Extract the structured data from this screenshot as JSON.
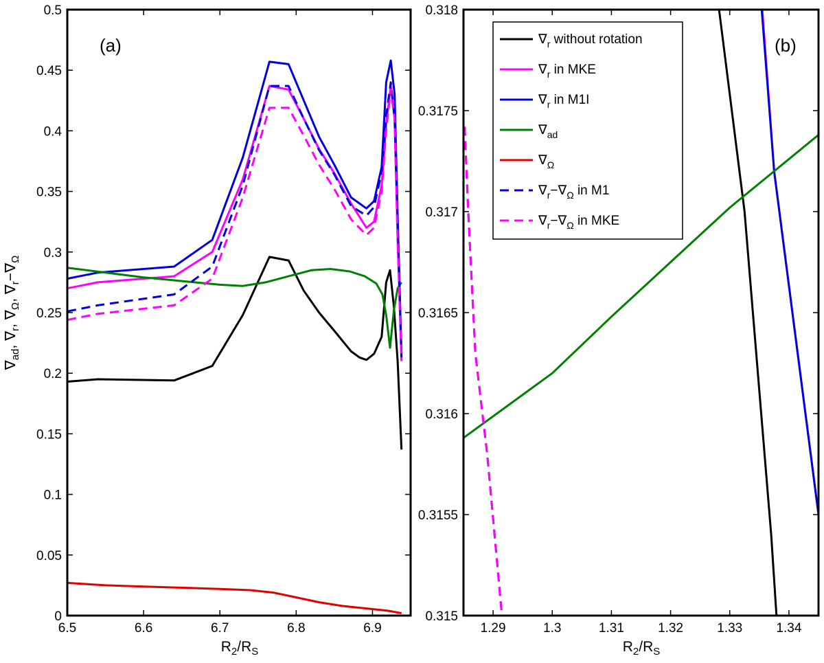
{
  "chart_data": [
    {
      "type": "line",
      "panel_label": "(a)",
      "xlabel": "R_2/R_S",
      "ylabel": "∇_ad, ∇_r, ∇_Ω, ∇_r−∇_Ω",
      "xlim": [
        6.5,
        6.95
      ],
      "ylim": [
        0,
        0.5
      ],
      "xticks": [
        "6.5",
        "6.6",
        "6.7",
        "6.8",
        "6.9"
      ],
      "yticks": [
        "0",
        "0.05",
        "0.1",
        "0.15",
        "0.2",
        "0.25",
        "0.3",
        "0.35",
        "0.4",
        "0.45",
        "0.5"
      ],
      "series": [
        {
          "name": "∇r without rotation",
          "color": "#000000",
          "dash": false,
          "x": [
            6.5,
            6.54,
            6.64,
            6.69,
            6.73,
            6.765,
            6.79,
            6.81,
            6.83,
            6.85,
            6.872,
            6.883,
            6.892,
            6.902,
            6.912,
            6.918,
            6.923,
            6.928,
            6.933,
            6.938
          ],
          "y": [
            0.193,
            0.195,
            0.194,
            0.206,
            0.248,
            0.296,
            0.293,
            0.268,
            0.25,
            0.235,
            0.218,
            0.213,
            0.211,
            0.216,
            0.23,
            0.275,
            0.285,
            0.255,
            0.21,
            0.137
          ]
        },
        {
          "name": "∇r in MKE",
          "color": "#ff00ff",
          "dash": false,
          "x": [
            6.5,
            6.54,
            6.64,
            6.69,
            6.73,
            6.765,
            6.79,
            6.81,
            6.83,
            6.85,
            6.872,
            6.892,
            6.902,
            6.912,
            6.918,
            6.924,
            6.929,
            6.933,
            6.938
          ],
          "y": [
            0.27,
            0.275,
            0.28,
            0.3,
            0.36,
            0.437,
            0.434,
            0.41,
            0.385,
            0.365,
            0.34,
            0.32,
            0.325,
            0.355,
            0.405,
            0.437,
            0.41,
            0.31,
            0.21
          ]
        },
        {
          "name": "∇r in M1I",
          "color": "#0000dd",
          "dash": false,
          "x": [
            6.5,
            6.54,
            6.64,
            6.69,
            6.73,
            6.765,
            6.79,
            6.81,
            6.83,
            6.85,
            6.872,
            6.892,
            6.902,
            6.912,
            6.918,
            6.924,
            6.929,
            6.933,
            6.938
          ],
          "y": [
            0.278,
            0.283,
            0.288,
            0.31,
            0.378,
            0.457,
            0.455,
            0.425,
            0.395,
            0.372,
            0.345,
            0.336,
            0.342,
            0.37,
            0.44,
            0.458,
            0.43,
            0.33,
            0.215
          ]
        },
        {
          "name": "∇ad",
          "color": "#008000",
          "dash": false,
          "x": [
            6.5,
            6.55,
            6.6,
            6.65,
            6.7,
            6.73,
            6.76,
            6.79,
            6.82,
            6.845,
            6.87,
            6.89,
            6.905,
            6.913,
            6.918,
            6.923,
            6.928,
            6.933,
            6.938
          ],
          "y": [
            0.287,
            0.283,
            0.279,
            0.276,
            0.273,
            0.272,
            0.275,
            0.28,
            0.285,
            0.286,
            0.284,
            0.28,
            0.274,
            0.265,
            0.248,
            0.221,
            0.252,
            0.27,
            0.275
          ]
        },
        {
          "name": "∇Ω",
          "color": "#e00000",
          "dash": false,
          "x": [
            6.5,
            6.55,
            6.6,
            6.65,
            6.7,
            6.74,
            6.77,
            6.8,
            6.83,
            6.86,
            6.89,
            6.92,
            6.938
          ],
          "y": [
            0.027,
            0.025,
            0.024,
            0.023,
            0.022,
            0.021,
            0.019,
            0.015,
            0.011,
            0.008,
            0.006,
            0.004,
            0.002
          ]
        },
        {
          "name": "∇r−∇Ω in M1",
          "color": "#0000dd",
          "dash": true,
          "x": [
            6.5,
            6.54,
            6.64,
            6.69,
            6.73,
            6.765,
            6.79,
            6.81,
            6.83,
            6.85,
            6.872,
            6.892,
            6.902,
            6.912,
            6.918,
            6.924,
            6.929,
            6.933,
            6.938
          ],
          "y": [
            0.251,
            0.256,
            0.265,
            0.288,
            0.355,
            0.437,
            0.437,
            0.41,
            0.384,
            0.364,
            0.338,
            0.33,
            0.337,
            0.366,
            0.412,
            0.44,
            0.41,
            0.325,
            0.213
          ]
        },
        {
          "name": "∇r−∇Ω in MKE",
          "color": "#ff00ff",
          "dash": true,
          "x": [
            6.5,
            6.54,
            6.64,
            6.69,
            6.73,
            6.765,
            6.79,
            6.81,
            6.83,
            6.85,
            6.872,
            6.892,
            6.902,
            6.912,
            6.918,
            6.924,
            6.929,
            6.933,
            6.938
          ],
          "y": [
            0.244,
            0.249,
            0.256,
            0.278,
            0.345,
            0.419,
            0.419,
            0.396,
            0.372,
            0.352,
            0.327,
            0.314,
            0.32,
            0.35,
            0.401,
            0.434,
            0.41,
            0.31,
            0.21
          ]
        }
      ]
    },
    {
      "type": "line",
      "panel_label": "(b)",
      "xlabel": "R_2/R_S",
      "ylabel": "",
      "xlim": [
        1.285,
        1.345
      ],
      "ylim": [
        0.315,
        0.318
      ],
      "xticks": [
        "1.29",
        "1.3",
        "1.31",
        "1.32",
        "1.33",
        "1.34"
      ],
      "yticks": [
        "0.315",
        "0.3155",
        "0.316",
        "0.3165",
        "0.317",
        "0.3175",
        "0.318"
      ],
      "legend_position": "top-left",
      "series": [
        {
          "name": "∇r without rotation",
          "color": "#000000",
          "dash": false,
          "x": [
            1.3282,
            1.3325,
            1.337,
            1.3379
          ],
          "y": [
            0.318,
            0.317,
            0.3154,
            0.315
          ]
        },
        {
          "name": "∇r in MKE",
          "color": "#ff00ff",
          "dash": false,
          "x": [
            1.3355,
            1.3375,
            1.345
          ],
          "y": [
            0.318,
            0.3172,
            0.3155
          ]
        },
        {
          "name": "∇r in M1I",
          "color": "#0000dd",
          "dash": false,
          "x": [
            1.3354,
            1.3375,
            1.345
          ],
          "y": [
            0.318,
            0.3172,
            0.3155
          ]
        },
        {
          "name": "∇ad",
          "color": "#008000",
          "dash": false,
          "x": [
            1.285,
            1.3,
            1.31,
            1.32,
            1.33,
            1.345
          ],
          "y": [
            0.31588,
            0.3162,
            0.31648,
            0.31675,
            0.31702,
            0.31738
          ]
        },
        {
          "name": "∇Ω",
          "color": "#e00000",
          "dash": false,
          "x": [],
          "y": []
        },
        {
          "name": "∇r−∇Ω in M1",
          "color": "#0000dd",
          "dash": true,
          "x": [
            1.2852,
            1.2858,
            1.287,
            1.289,
            1.2915
          ],
          "y": [
            0.31742,
            0.317,
            0.3163,
            0.3158,
            0.315
          ]
        },
        {
          "name": "∇r−∇Ω in MKE",
          "color": "#ff00ff",
          "dash": true,
          "x": [
            1.2852,
            1.2858,
            1.287,
            1.289,
            1.2915
          ],
          "y": [
            0.31742,
            0.317,
            0.3163,
            0.3158,
            0.315
          ]
        }
      ]
    }
  ],
  "legend": [
    {
      "symbol": "∇",
      "sub": "r",
      "text": " without rotation",
      "color": "#000000",
      "dash": false
    },
    {
      "symbol": "∇",
      "sub": "r",
      "text": " in MKE",
      "color": "#ff00ff",
      "dash": false
    },
    {
      "symbol": "∇",
      "sub": "r",
      "text": "  in M1I",
      "color": "#0000dd",
      "dash": false
    },
    {
      "symbol": "∇",
      "sub": "ad",
      "text": "",
      "color": "#008000",
      "dash": false
    },
    {
      "symbol": "∇",
      "sub": "Ω",
      "text": "",
      "color": "#e00000",
      "dash": false
    },
    {
      "symbol": "∇",
      "sub": "r",
      "mid": "−∇",
      "sub2": "Ω",
      "text": " in M1",
      "color": "#0000dd",
      "dash": true
    },
    {
      "symbol": "∇",
      "sub": "r",
      "mid": "−∇",
      "sub2": "Ω",
      "text": " in MKE",
      "color": "#ff00ff",
      "dash": true
    }
  ],
  "labels": {
    "x_main": "R",
    "x_sub1": "2",
    "x_slash": "/R",
    "x_sub2": "S",
    "yl_nabla": "∇",
    "yl_ad": "ad",
    "yl_r": "r",
    "yl_omega": "Ω",
    "yl_comma": ", ",
    "yl_minus": "−∇"
  }
}
